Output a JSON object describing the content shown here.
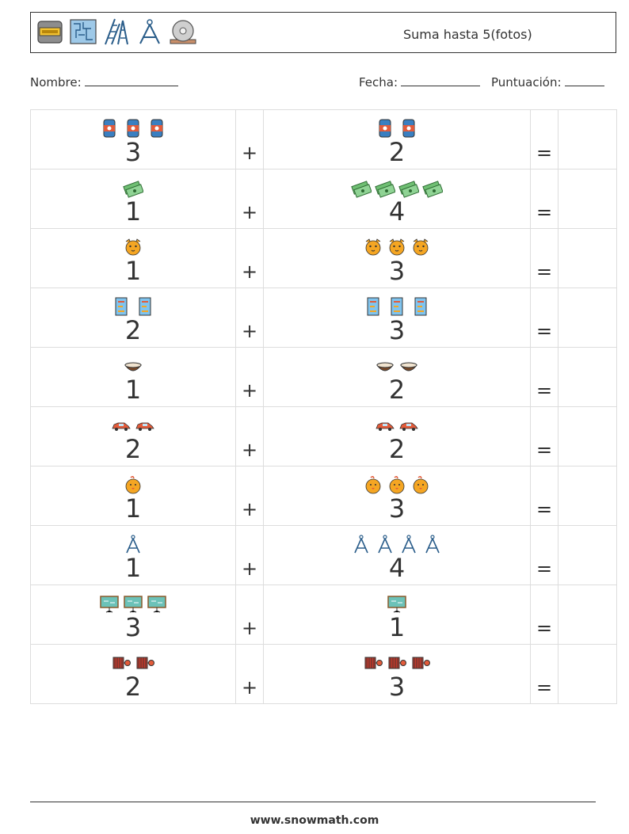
{
  "header": {
    "title": "Suma hasta 5(fotos)",
    "icons": [
      "cement-bag-icon",
      "blueprint-icon",
      "ladder-icon",
      "compass-icon",
      "saw-blade-icon"
    ]
  },
  "fields": {
    "name_label": "Nombre:",
    "date_label": "Fecha:",
    "score_label": "Puntuación:"
  },
  "operators": {
    "plus": "+",
    "equals": "="
  },
  "problems": [
    {
      "a": 3,
      "a_text": "3",
      "a_icon": "barrel",
      "b": 2,
      "b_text": "2",
      "b_icon": "barrel"
    },
    {
      "a": 1,
      "a_text": "1",
      "a_icon": "money",
      "b": 4,
      "b_text": "4",
      "b_icon": "money"
    },
    {
      "a": 1,
      "a_text": "1",
      "a_icon": "tiger",
      "b": 3,
      "b_text": "3",
      "b_icon": "tiger"
    },
    {
      "a": 2,
      "a_text": "2",
      "a_icon": "chart",
      "b": 3,
      "b_text": "3",
      "b_icon": "chart"
    },
    {
      "a": 1,
      "a_text": "1",
      "a_icon": "coconut",
      "b": 2,
      "b_text": "2",
      "b_icon": "coconut"
    },
    {
      "a": 2,
      "a_text": "2",
      "a_icon": "car",
      "b": 2,
      "b_text": "2",
      "b_icon": "car"
    },
    {
      "a": 1,
      "a_text": "1",
      "a_icon": "chick",
      "b": 3,
      "b_text": "3",
      "b_icon": "chick"
    },
    {
      "a": 1,
      "a_text": "1",
      "a_icon": "compass",
      "b": 4,
      "b_text": "4",
      "b_icon": "compass"
    },
    {
      "a": 3,
      "a_text": "3",
      "a_icon": "board",
      "b": 1,
      "b_text": "1",
      "b_icon": "board"
    },
    {
      "a": 2,
      "a_text": "2",
      "a_icon": "hose",
      "b": 3,
      "b_text": "3",
      "b_icon": "hose"
    }
  ],
  "footer": {
    "url": "www.snowmath.com"
  }
}
